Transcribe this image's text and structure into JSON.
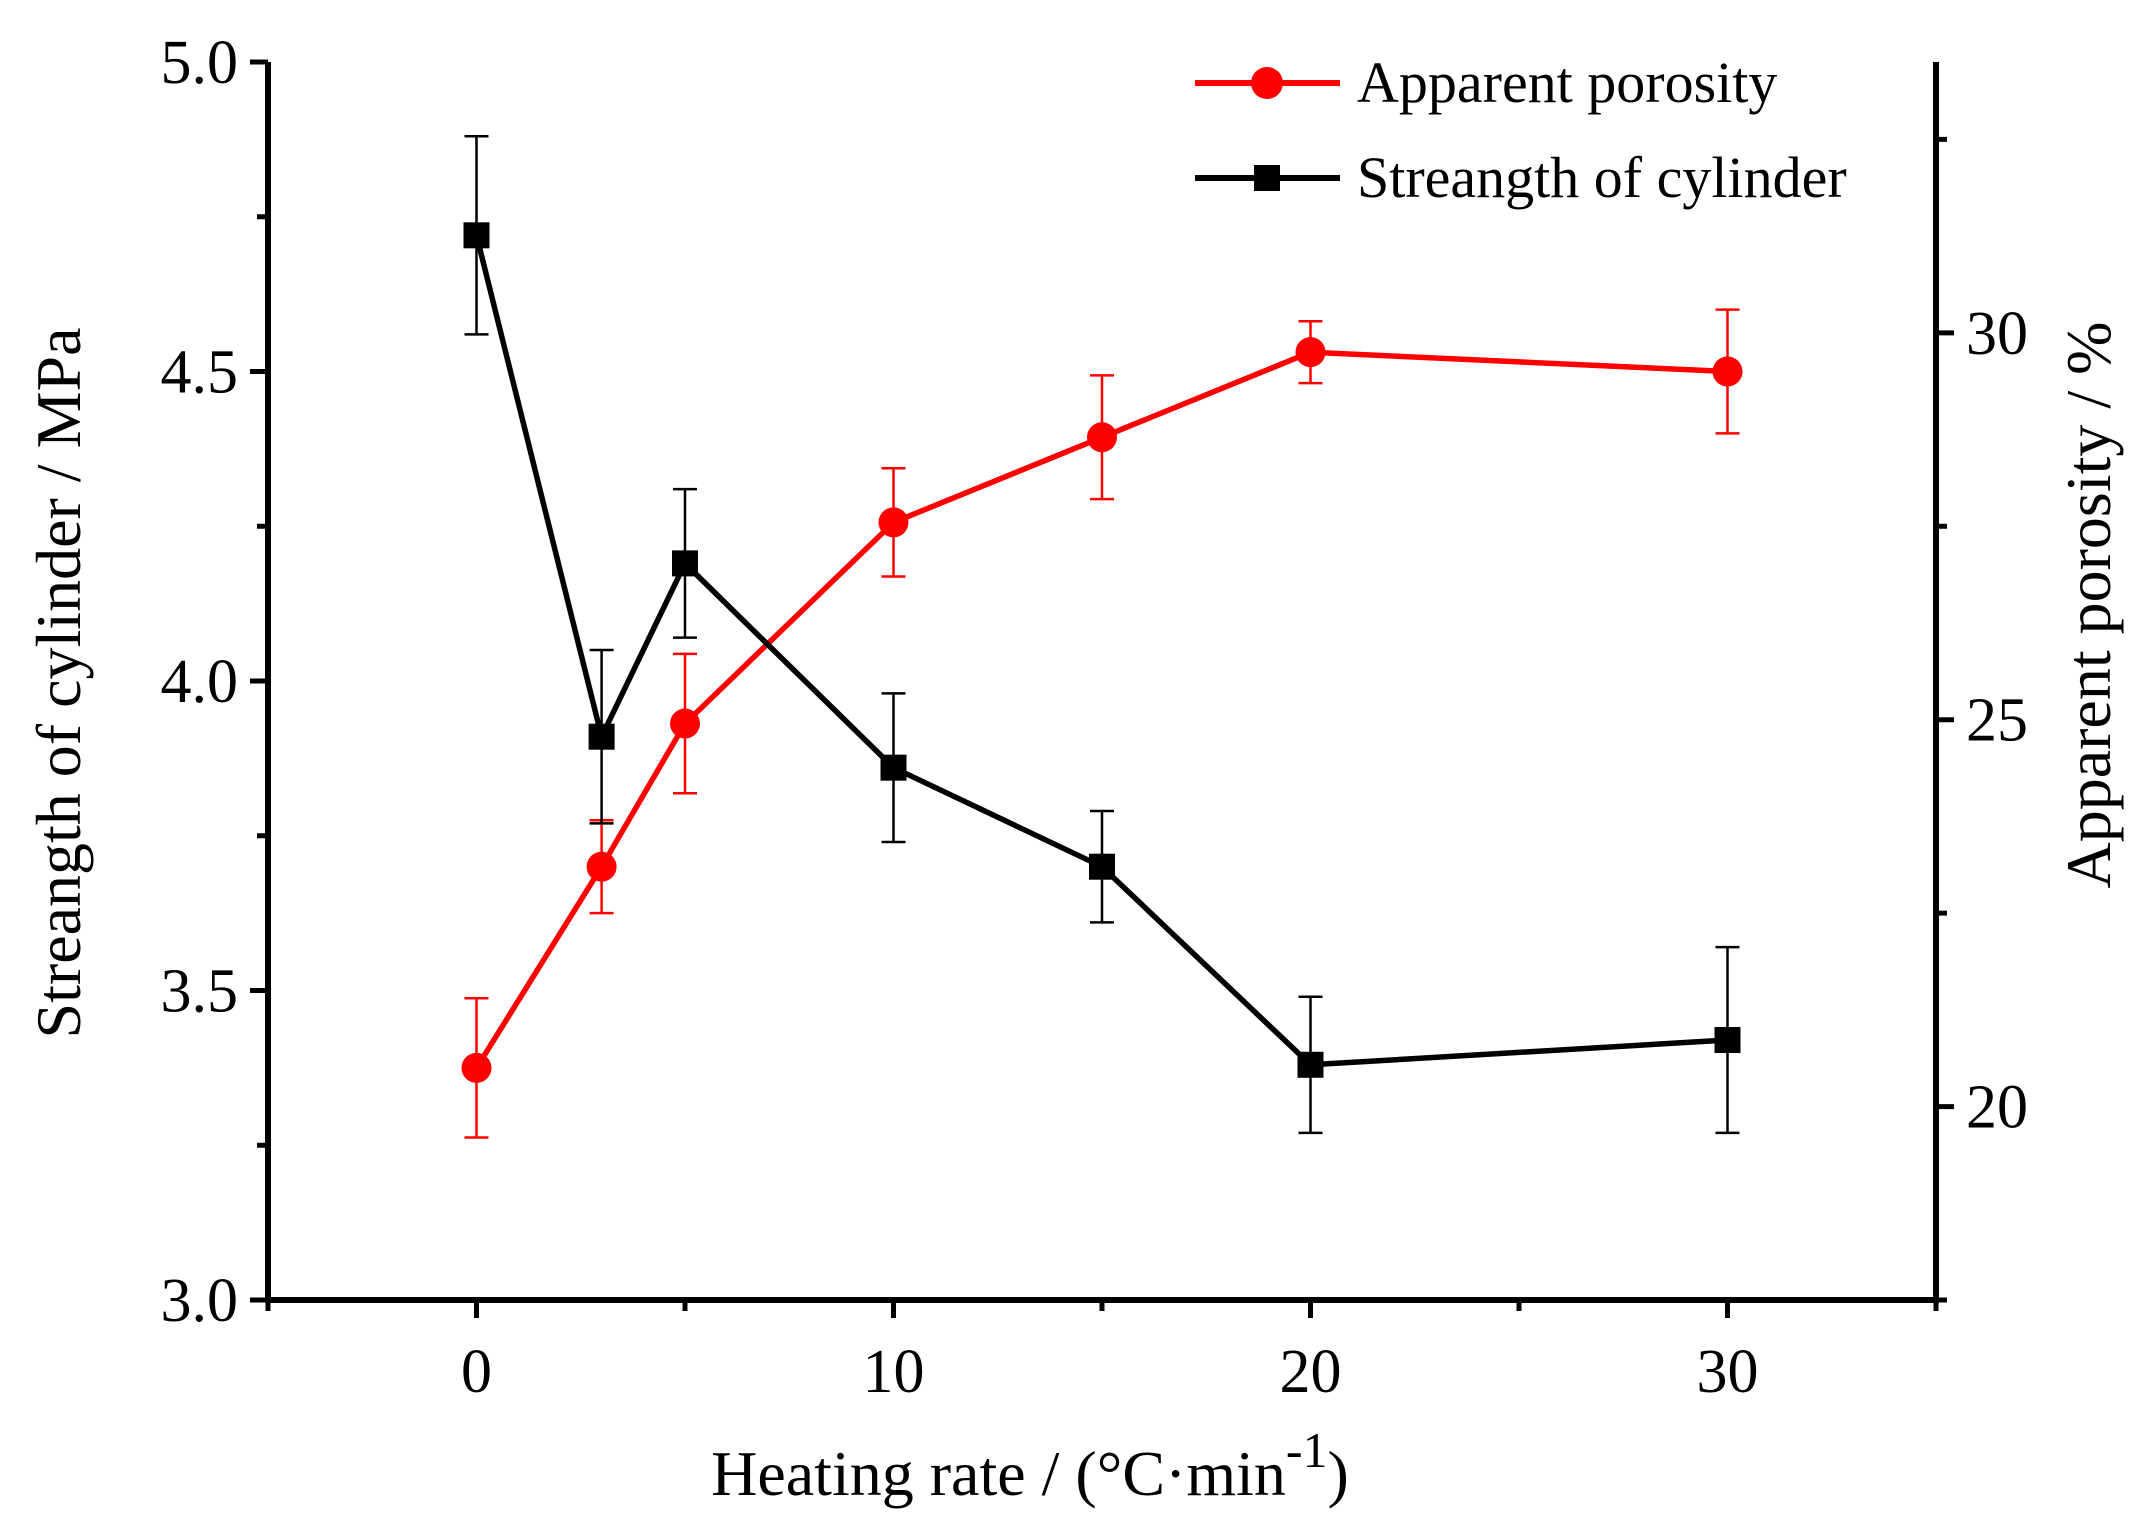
{
  "chart_data": {
    "type": "line",
    "x": [
      0,
      3,
      5,
      10,
      15,
      20,
      30
    ],
    "xlabel_main": "Heating rate / (°C·min",
    "xlabel_sup": "-1",
    "xlabel_close": ")",
    "xlim": [
      -5,
      35
    ],
    "x_ticks": [
      0,
      10,
      20,
      30
    ],
    "x_minor_ticks": [
      -5,
      5,
      15,
      25,
      35
    ],
    "ylabel_left": "Streangth of cylinder / MPa",
    "ylim_left": [
      3.0,
      5.0
    ],
    "y_ticks_left": [
      "3.0",
      "3.5",
      "4.0",
      "4.5",
      "5.0"
    ],
    "ylabel_right": "Apparent porosity / %",
    "ylim_right": [
      17.5,
      33.5
    ],
    "y_ticks_right": [
      20,
      25,
      30
    ],
    "y_minor_ticks_right": [
      17.5,
      22.5,
      27.5,
      32.5
    ],
    "legend_position": "top-right",
    "series": [
      {
        "name": "Apparent porosity",
        "axis": "right",
        "color": "#ff0000",
        "marker": "circle",
        "values": [
          20.5,
          23.1,
          24.95,
          27.55,
          28.65,
          29.75,
          29.5
        ],
        "errors": [
          0.9,
          0.6,
          0.9,
          0.7,
          0.8,
          0.4,
          0.8
        ]
      },
      {
        "name": "Streangth of cylinder",
        "axis": "left",
        "color": "#000000",
        "marker": "square",
        "values": [
          4.72,
          3.91,
          4.19,
          3.86,
          3.7,
          3.38,
          3.42
        ],
        "errors": [
          0.16,
          0.14,
          0.12,
          0.12,
          0.09,
          0.11,
          0.15
        ]
      }
    ]
  }
}
